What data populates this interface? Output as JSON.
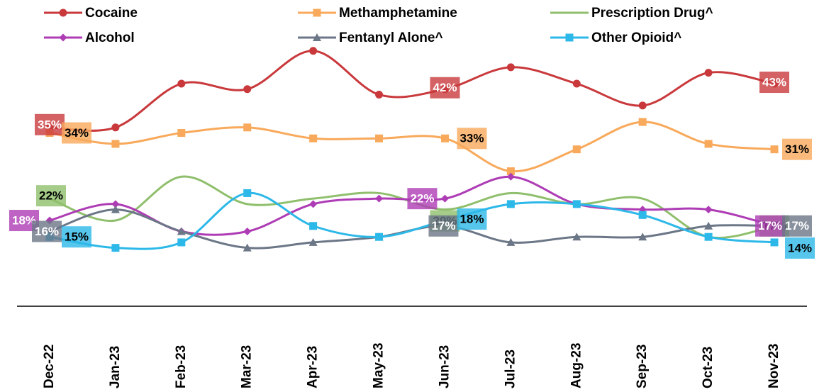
{
  "chart_data": {
    "type": "line",
    "categories": [
      "Dec-22",
      "Jan-23",
      "Feb-23",
      "Mar-23",
      "Apr-23",
      "May-23",
      "Jun-23",
      "Jul-23",
      "Aug-23",
      "Sep-23",
      "Oct-23",
      "Nov-23"
    ],
    "ylim": [
      0,
      55
    ],
    "smooth": true,
    "legend": "top",
    "series": [
      {
        "name": "Cocaine",
        "color": "#c9393c",
        "marker": "circle",
        "label_text_color": "#ffffff",
        "values": [
          35,
          35,
          43,
          42,
          49,
          41,
          42,
          46,
          43,
          39,
          45,
          43
        ],
        "value_labels": [
          "35%",
          null,
          null,
          null,
          null,
          null,
          "42%",
          null,
          null,
          null,
          null,
          "43%"
        ]
      },
      {
        "name": "Methamphetamine",
        "color": "#f8a95b",
        "marker": "square",
        "label_text_color": "#000000",
        "values": [
          34,
          32,
          34,
          35,
          33,
          33,
          33,
          27,
          31,
          36,
          32,
          31
        ],
        "value_labels": [
          "34%",
          null,
          null,
          null,
          null,
          null,
          "33%",
          null,
          null,
          null,
          null,
          "31%"
        ]
      },
      {
        "name": "Prescription Drug^",
        "color": "#8fbf6c",
        "marker": "none",
        "label_text_color": "#000000",
        "values": [
          22,
          18,
          26,
          21,
          22,
          23,
          20,
          23,
          21,
          22,
          15,
          17
        ],
        "value_labels": [
          "22%",
          null,
          null,
          null,
          null,
          null,
          "20%",
          null,
          null,
          null,
          null,
          "17%"
        ]
      },
      {
        "name": "Alcohol",
        "color": "#ae3cb5",
        "marker": "diamond",
        "label_text_color": "#ffffff",
        "values": [
          18,
          21,
          16,
          16,
          21,
          22,
          22,
          26,
          21,
          20,
          20,
          17
        ],
        "value_labels": [
          "18%",
          null,
          null,
          null,
          null,
          null,
          "22%",
          null,
          null,
          null,
          null,
          "17%"
        ]
      },
      {
        "name": "Fentanyl Alone^",
        "color": "#6b7687",
        "marker": "triangle",
        "label_text_color": "#ffffff",
        "values": [
          16,
          20,
          16,
          13,
          14,
          15,
          17,
          14,
          15,
          15,
          17,
          17
        ],
        "value_labels": [
          "16%",
          null,
          null,
          null,
          null,
          null,
          "17%",
          null,
          null,
          null,
          null,
          "17%"
        ]
      },
      {
        "name": "Other Opioid^",
        "color": "#2cb8e8",
        "marker": "square",
        "label_text_color": "#000000",
        "values": [
          15,
          13,
          14,
          23,
          17,
          15,
          18,
          21,
          21,
          19,
          15,
          14
        ],
        "value_labels": [
          "15%",
          null,
          null,
          null,
          null,
          null,
          "18%",
          null,
          null,
          null,
          null,
          "14%"
        ]
      }
    ]
  }
}
